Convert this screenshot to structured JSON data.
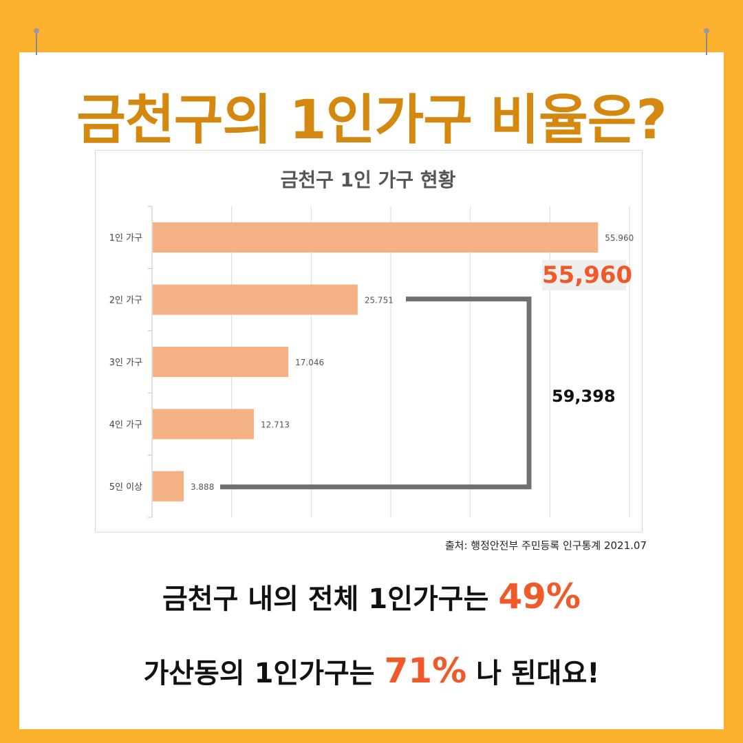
{
  "main_title": "금천구의 1인가구 비율은?",
  "callout_big": "55,960",
  "bracket_label": "59,398",
  "source": "출처: 행정안전부 주민등록 인구통계 2021.07",
  "line1": {
    "text": "금천구 내의 전체 1인가구는 ",
    "accent": "49%"
  },
  "line2": {
    "before": "가산동의 1인가구는 ",
    "accent": "71%",
    "after": " 나 된대요!"
  },
  "colors": {
    "background": "#FDB22F",
    "title": "#D4880F",
    "bar": "#F4B183",
    "accent": "#F05A28",
    "bracket": "#707070"
  },
  "chart_data": {
    "type": "bar",
    "orientation": "horizontal",
    "title": "금천구 1인 가구 현황",
    "categories": [
      "1인 가구",
      "2인 가구",
      "3인 가구",
      "4인 가구",
      "5인 이상"
    ],
    "values": [
      55.96,
      25.751,
      17.046,
      12.713,
      3.888
    ],
    "value_labels": [
      "55.960",
      "25.751",
      "17.046",
      "12.713",
      "3.888"
    ],
    "xlim": [
      0,
      60
    ],
    "grid": true,
    "legend": "none"
  }
}
